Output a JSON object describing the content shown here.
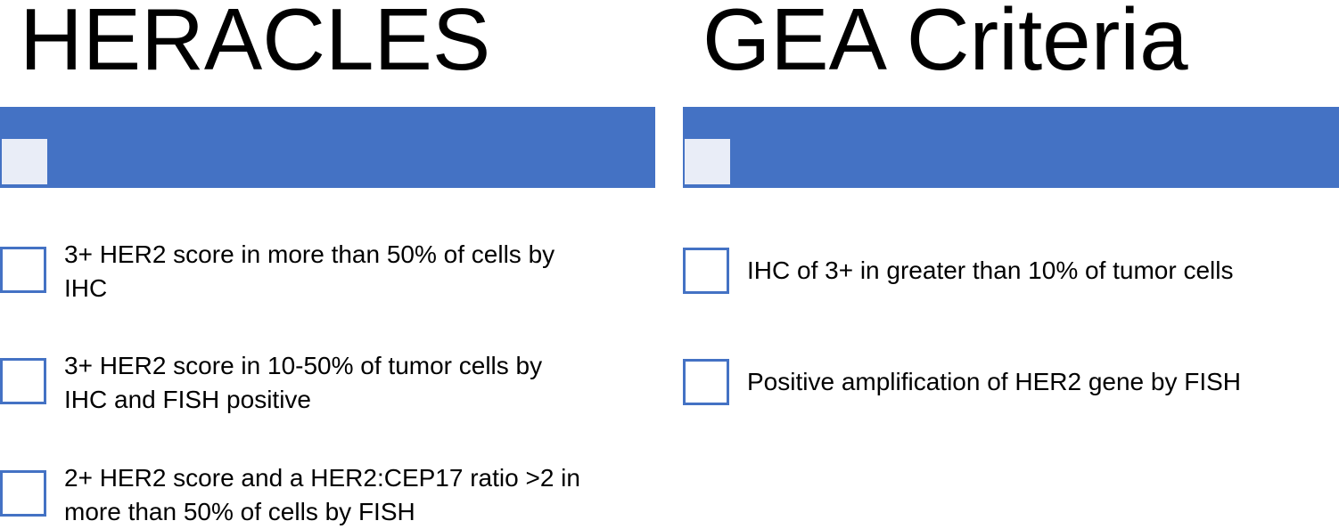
{
  "columns": [
    {
      "title": "HERACLES",
      "items": [
        {
          "line1": "3+ HER2 score in more than 50% of cells by",
          "line2": "IHC"
        },
        {
          "line1": "3+ HER2 score in 10-50% of tumor cells by",
          "line2": "IHC and FISH positive"
        },
        {
          "line1": "2+ HER2 score and a HER2:CEP17 ratio >2 in",
          "line2": "more than 50% of cells by FISH"
        }
      ]
    },
    {
      "title": "GEA Criteria",
      "items": [
        {
          "line1": "IHC of 3+ in greater than 10% of tumor cells",
          "line2": ""
        },
        {
          "line1": "Positive amplification of HER2 gene by FISH",
          "line2": ""
        }
      ]
    }
  ],
  "colors": {
    "accent": "#4472c4",
    "header_square": "#e9edf7"
  }
}
